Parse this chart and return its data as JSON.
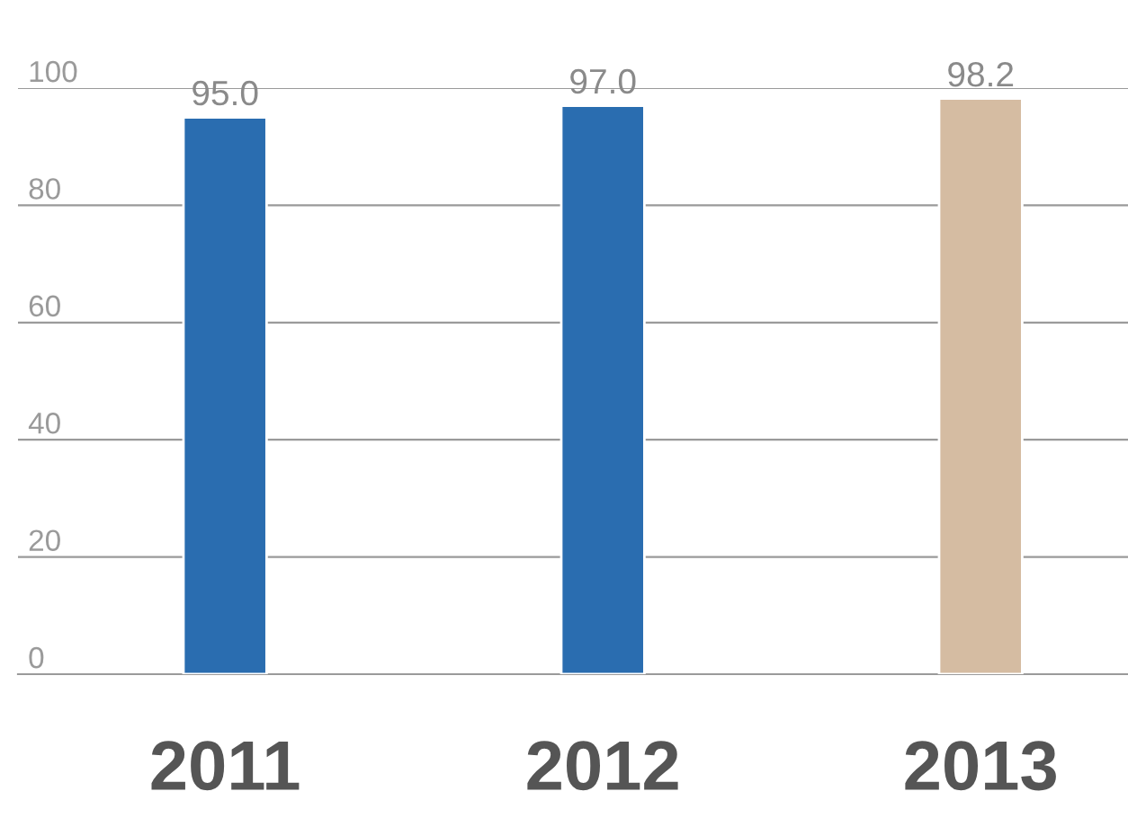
{
  "chart_data": {
    "type": "bar",
    "categories": [
      "2011",
      "2012",
      "2013"
    ],
    "values": [
      95.0,
      97.0,
      98.2
    ],
    "colors": [
      "#2a6db0",
      "#2a6db0",
      "#d5bca2"
    ],
    "value_labels": [
      "95.0",
      "97.0",
      "98.2"
    ],
    "ylim": [
      0,
      100
    ],
    "yticks": [
      0,
      20,
      40,
      60,
      80,
      100
    ],
    "grid": "y"
  }
}
